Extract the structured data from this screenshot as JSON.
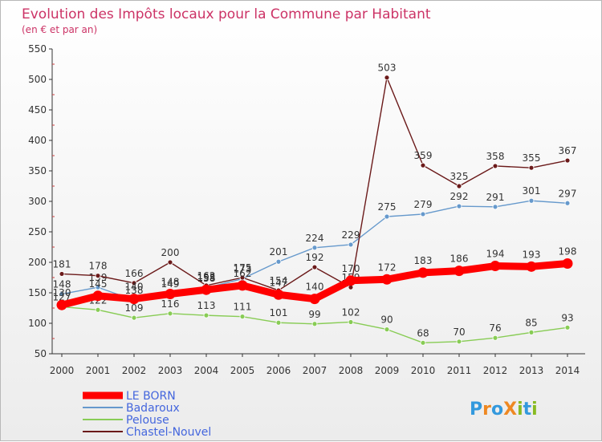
{
  "chart_data": {
    "type": "line",
    "title": "Evolution des Impôts locaux pour la Commune par Habitant",
    "subtitle": "(en € et par an)",
    "categories": [
      "2000",
      "2001",
      "2002",
      "2003",
      "2004",
      "2005",
      "2006",
      "2007",
      "2008",
      "2009",
      "2010",
      "2011",
      "2012",
      "2013",
      "2014"
    ],
    "ylim": [
      50,
      550
    ],
    "yticks": [
      50,
      100,
      150,
      200,
      250,
      300,
      350,
      400,
      450,
      500,
      550
    ],
    "grid": false,
    "legend_position": "bottom-left",
    "series": [
      {
        "name": "LE BORN",
        "color": "#ff0000",
        "emphasis": true,
        "show_labels": true,
        "values": [
          130,
          145,
          140,
          148,
          155,
          162,
          147,
          140,
          170,
          172,
          183,
          186,
          194,
          193,
          198
        ]
      },
      {
        "name": "Badaroux",
        "color": "#6699cc",
        "show_labels": true,
        "values": [
          148,
          159,
          138,
          149,
          158,
          173,
          201,
          224,
          229,
          275,
          279,
          292,
          291,
          301,
          297
        ]
      },
      {
        "name": "Pelouse",
        "color": "#88cc55",
        "show_labels": true,
        "values": [
          127,
          122,
          109,
          116,
          113,
          111,
          101,
          99,
          102,
          90,
          68,
          70,
          76,
          85,
          93
        ]
      },
      {
        "name": "Chastel-Nouvel",
        "color": "#6b1a1a",
        "show_labels": true,
        "values": [
          181,
          178,
          166,
          200,
          162,
          175,
          154,
          192,
          159,
          503,
          359,
          325,
          358,
          355,
          367
        ]
      }
    ]
  },
  "brand": {
    "logo_text": "ProXiti"
  }
}
